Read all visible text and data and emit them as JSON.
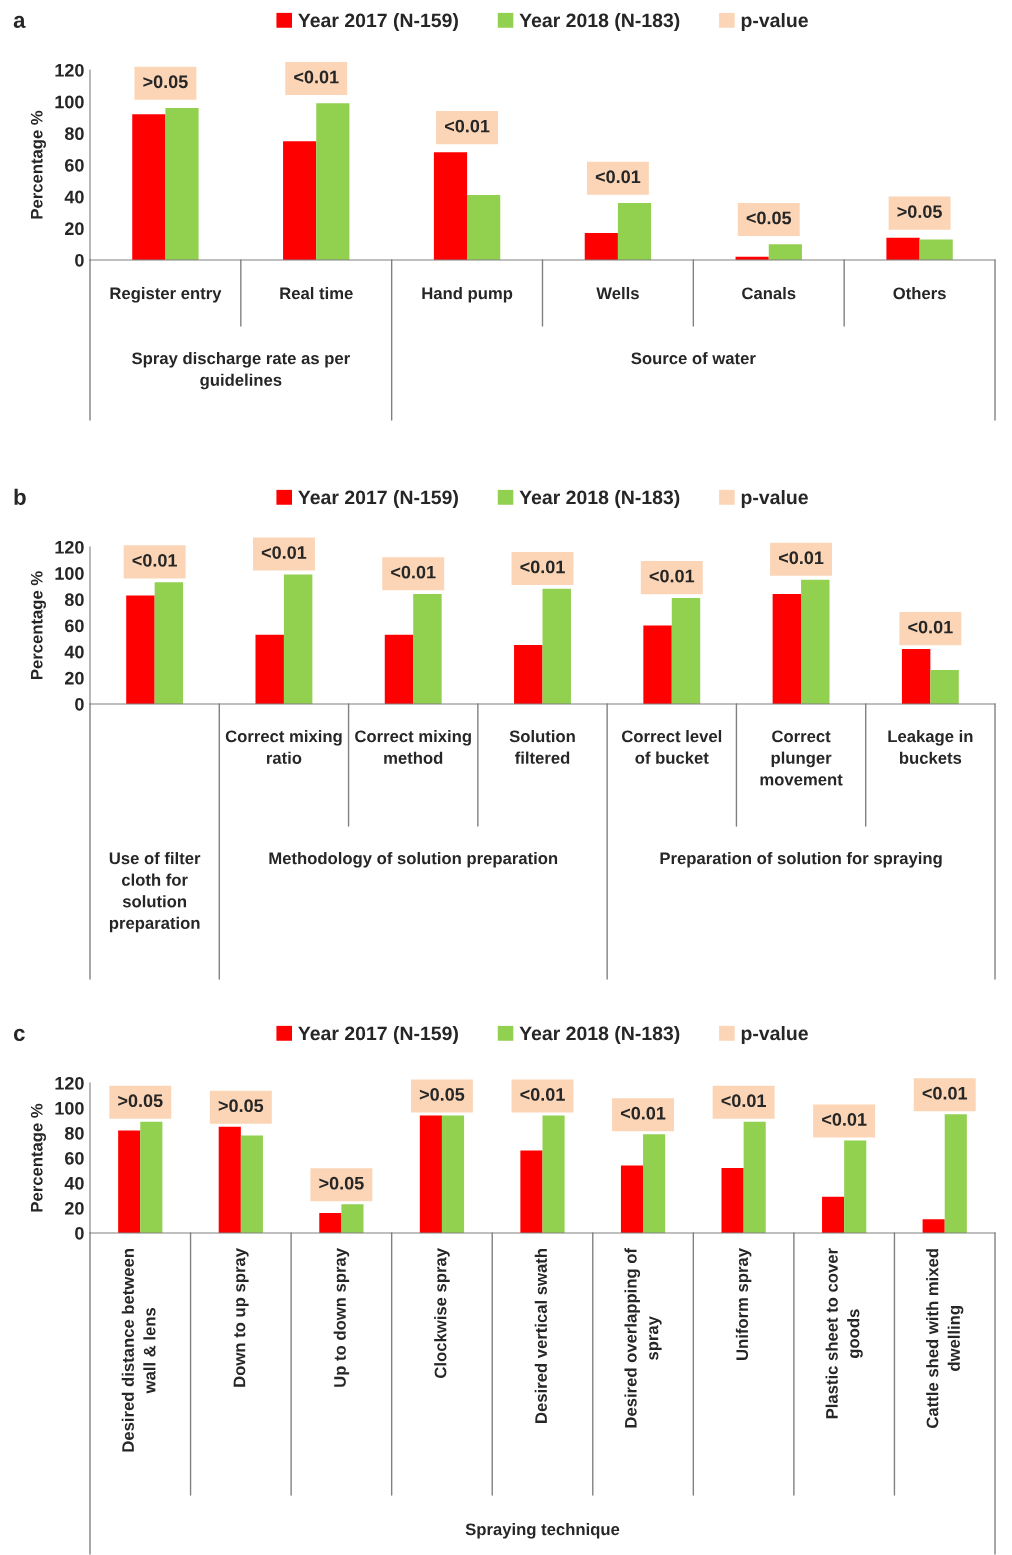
{
  "chart_data": [
    {
      "type": "bar",
      "title": "a",
      "ylabel": "Percentage %",
      "categories": [
        "Register entry",
        "Real time",
        "Hand pump",
        "Wells",
        "Canals",
        "Others"
      ],
      "series": [
        {
          "name": "Year 2017 (N-159)",
          "color": "#ff0000",
          "values": [
            92,
            75,
            68,
            17,
            2,
            14
          ]
        },
        {
          "name": "Year 2018 (N-183)",
          "color": "#92d050",
          "values": [
            96,
            99,
            41,
            36,
            10,
            13
          ]
        },
        {
          "name": "p-value",
          "color": "#fbd5b5",
          "values": [
            null,
            null,
            null,
            null,
            null,
            null
          ]
        }
      ],
      "ylim": [
        0,
        120
      ],
      "yticks": [
        0,
        20,
        40,
        60,
        80,
        100,
        120
      ],
      "legend": "top",
      "annotations": [
        ">0.05",
        "<0.01",
        "<0.01",
        "<0.01",
        "<0.05",
        ">0.05",
        "Spray discharge rate as per guidelines",
        "Source of water"
      ]
    },
    {
      "type": "bar",
      "title": "b",
      "ylabel": "Percentage %",
      "categories": [
        null,
        "Correct mixing ratio",
        "Correct mixing method",
        "Solution filtered",
        "Correct level of bucket",
        "Correct plunger movement",
        "Leakage in buckets"
      ],
      "series": [
        {
          "name": "Year 2017 (N-159)",
          "color": "#ff0000",
          "values": [
            83,
            53,
            53,
            45,
            60,
            84,
            42
          ]
        },
        {
          "name": "Year 2018 (N-183)",
          "color": "#92d050",
          "values": [
            93,
            99,
            84,
            88,
            81,
            95,
            26
          ]
        },
        {
          "name": "p-value",
          "color": "#fbd5b5",
          "values": [
            null,
            null,
            null,
            null,
            null,
            null,
            null
          ]
        }
      ],
      "ylim": [
        0,
        120
      ],
      "yticks": [
        0,
        20,
        40,
        60,
        80,
        100,
        120
      ],
      "legend": "top",
      "annotations": [
        "<0.01",
        "<0.01",
        "<0.01",
        "<0.01",
        "<0.01",
        "<0.01",
        "<0.01",
        "Use of filter cloth for solution preparation",
        "Methodology of solution preparation",
        "Preparation of solution for spraying"
      ]
    },
    {
      "type": "bar",
      "title": "c",
      "ylabel": "Percentage %",
      "categories": [
        "Desired distance between wall & lens",
        "Down to up spray",
        "Up to down spray",
        "Clockwise spray",
        "Desired vertical swath",
        "Desired overlapping of spray",
        "Uniform spray",
        "Plastic sheet to cover goods",
        "Cattle shed with mixed dwelling"
      ],
      "series": [
        {
          "name": "Year 2017 (N-159)",
          "color": "#ff0000",
          "values": [
            82,
            85,
            16,
            94,
            66,
            54,
            52,
            29,
            11
          ]
        },
        {
          "name": "Year 2018 (N-183)",
          "color": "#92d050",
          "values": [
            89,
            78,
            23,
            94,
            94,
            79,
            89,
            74,
            95
          ]
        },
        {
          "name": "p-value",
          "color": "#fbd5b5",
          "values": [
            null,
            null,
            null,
            null,
            null,
            null,
            null,
            null,
            null
          ]
        }
      ],
      "ylim": [
        0,
        120
      ],
      "yticks": [
        0,
        20,
        40,
        60,
        80,
        100,
        120
      ],
      "legend": "top",
      "annotations": [
        ">0.05",
        ">0.05",
        ">0.05",
        ">0.05",
        "<0.01",
        "<0.01",
        "<0.01",
        "<0.01",
        "<0.01",
        "Spraying technique"
      ]
    }
  ]
}
